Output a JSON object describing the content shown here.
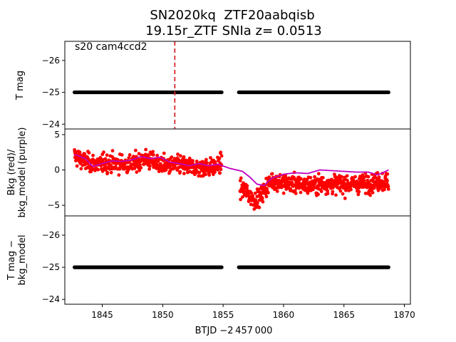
{
  "title_line1": "SN2020kq  ZTF20aabqisb",
  "title_line2": "19.15r_ZTF SNIa z= 0.0513",
  "xlabel": "BTJD −2 457 000",
  "chart_data": [
    {
      "type": "scatter",
      "panel": "top",
      "ylabel": "T mag",
      "annotation": "s20 cam4ccd2",
      "ylim": [
        -23.85,
        -26.6
      ],
      "y_inverted": true,
      "yticks": [
        -26,
        -25,
        -24
      ],
      "ytick_labels": [
        "−26",
        "−25",
        "−24"
      ],
      "vline_x": 1851.0,
      "vline_color": "#d62728",
      "series": [
        {
          "color": "#000000",
          "segments": [
            [
              1842.7,
              1854.9,
              -25.0
            ],
            [
              1856.3,
              1868.7,
              -25.0
            ]
          ]
        }
      ]
    },
    {
      "type": "scatter",
      "panel": "middle",
      "ylabel": "Bkg (red)/\nbkg_model (purple)",
      "ylim": [
        -6.5,
        5.8
      ],
      "yticks": [
        5,
        0,
        -5
      ],
      "ytick_labels": [
        "5",
        "0",
        "−5"
      ],
      "series": [
        {
          "kind": "points",
          "color": "#ff0000",
          "scatter_sd": 0.9,
          "trend_x": [
            1842.7,
            1843.5,
            1844.5,
            1845.5,
            1846.5,
            1847.5,
            1848.5,
            1849.5,
            1850.5,
            1851.5,
            1852.5,
            1853.5,
            1854.5,
            1854.9,
            1856.4,
            1857.0,
            1857.5,
            1858.0,
            1858.5,
            1859.0,
            1860.0,
            1861.0,
            1862.0,
            1863.0,
            1864.0,
            1865.0,
            1866.0,
            1867.0,
            1868.0,
            1868.7
          ],
          "trend_y": [
            2.0,
            1.2,
            0.8,
            1.0,
            0.9,
            0.8,
            1.6,
            0.9,
            0.6,
            0.7,
            0.4,
            0.3,
            0.5,
            1.0,
            -2.5,
            -3.2,
            -4.2,
            -4.0,
            -2.5,
            -1.5,
            -1.8,
            -2.0,
            -2.2,
            -2.0,
            -2.0,
            -2.0,
            -2.0,
            -1.9,
            -1.6,
            -1.8
          ]
        },
        {
          "kind": "line",
          "color": "#bf00bf",
          "x": [
            1842.7,
            1843.6,
            1844.2,
            1845.0,
            1845.8,
            1846.6,
            1847.4,
            1848.2,
            1849.0,
            1849.8,
            1850.6,
            1851.4,
            1852.2,
            1853.0,
            1853.8,
            1854.6,
            1855.6,
            1856.6,
            1857.2,
            1857.8,
            1858.4,
            1859.0,
            1860.0,
            1861.0,
            1862.0,
            1863.0,
            1864.0,
            1865.0,
            1866.0,
            1867.0,
            1867.8,
            1868.7
          ],
          "y": [
            2.2,
            1.6,
            0.5,
            0.9,
            1.3,
            1.2,
            1.4,
            1.9,
            1.6,
            1.8,
            1.1,
            0.9,
            0.6,
            0.9,
            0.6,
            0.8,
            0.2,
            -0.2,
            -1.0,
            -2.0,
            -2.2,
            -1.2,
            -0.6,
            -0.4,
            -0.5,
            0.0,
            -0.1,
            -0.2,
            -0.3,
            -0.3,
            -0.7,
            0.0
          ]
        }
      ]
    },
    {
      "type": "scatter",
      "panel": "bottom",
      "ylabel": "T mag −\nbkg_model",
      "ylim": [
        -23.85,
        -26.6
      ],
      "y_inverted": true,
      "yticks": [
        -26,
        -25,
        -24
      ],
      "ytick_labels": [
        "−26",
        "−25",
        "−24"
      ],
      "xlim": [
        1841.9,
        1870.5
      ],
      "xticks": [
        1845,
        1850,
        1855,
        1860,
        1865,
        1870
      ],
      "xtick_labels": [
        "1845",
        "1850",
        "1855",
        "1860",
        "1865",
        "1870"
      ],
      "series": [
        {
          "color": "#000000",
          "segments": [
            [
              1842.7,
              1854.9,
              -25.0
            ],
            [
              1856.3,
              1868.7,
              -25.0
            ]
          ]
        }
      ]
    }
  ]
}
